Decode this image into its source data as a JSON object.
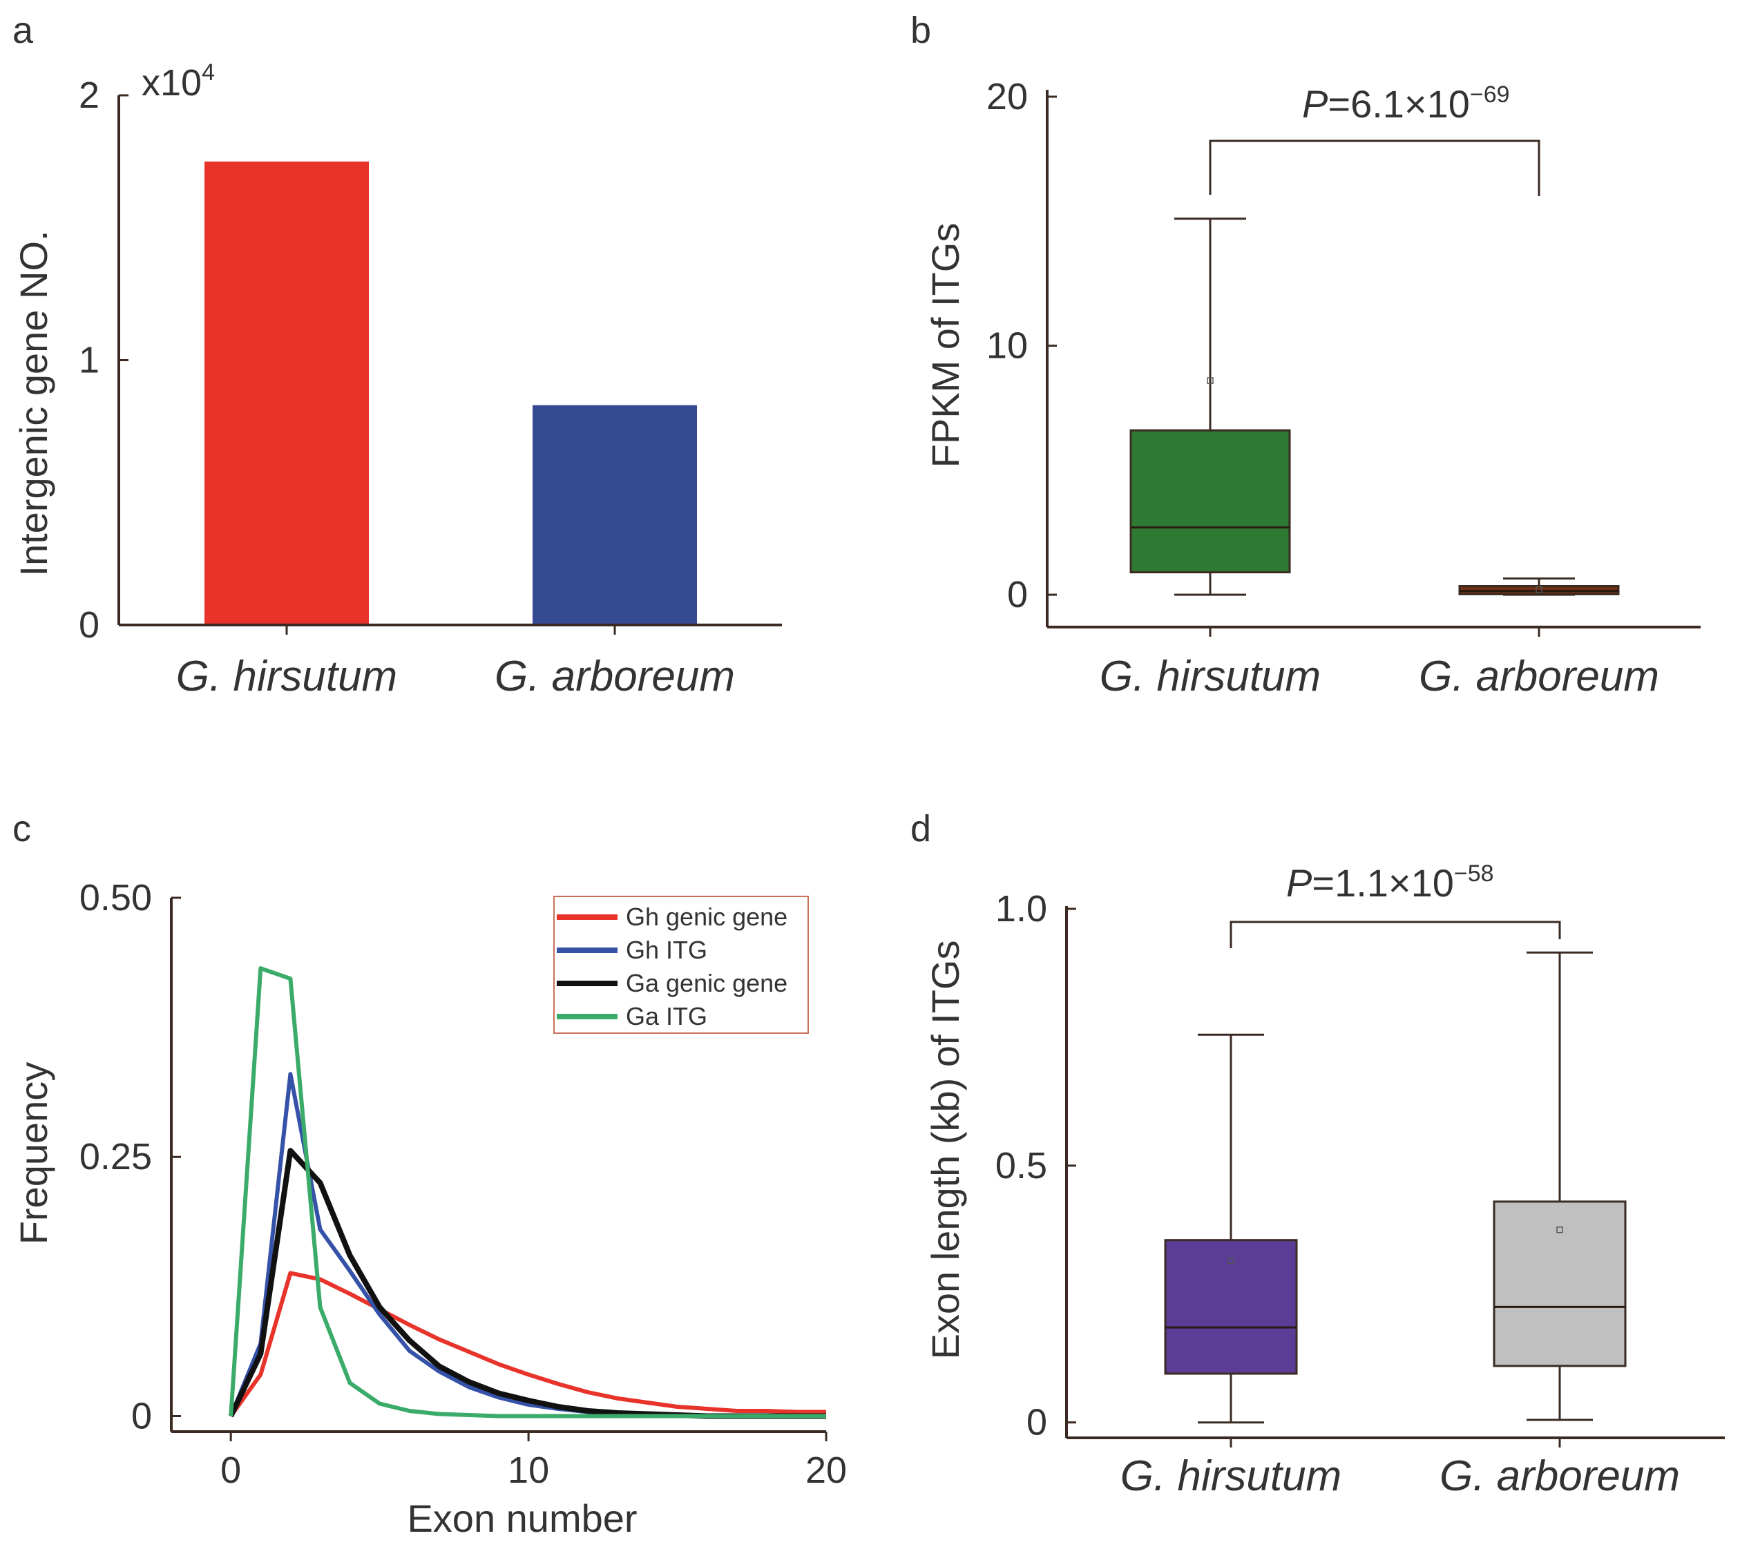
{
  "panels": {
    "a": "a",
    "b": "b",
    "c": "c",
    "d": "d"
  },
  "chart_data": [
    {
      "id": "a",
      "type": "bar",
      "categories": [
        "G. hirsutum",
        "G. arboreum"
      ],
      "values": [
        1.75,
        0.83
      ],
      "colors": [
        "#e8332a",
        "#354a92"
      ],
      "ylabel": "Intergenic gene NO.",
      "multiplier_label": {
        "base": "x10",
        "exp": "4"
      },
      "ylim": [
        0,
        2
      ],
      "yticks": [
        {
          "v": 0,
          "label": "0"
        },
        {
          "v": 1,
          "label": "1"
        },
        {
          "v": 2,
          "label": "2"
        }
      ]
    },
    {
      "id": "b",
      "type": "box",
      "categories": [
        "G. hirsutum",
        "G. arboreum"
      ],
      "boxes": [
        {
          "min": 0,
          "q1": 0.9,
          "median": 2.7,
          "q3": 6.6,
          "max": 15.1,
          "mean": 8.6,
          "color": "#2e7a32"
        },
        {
          "min": 0.0,
          "q1": 0.02,
          "median": 0.15,
          "q3": 0.35,
          "max": 0.65,
          "mean": 0.2,
          "color": "#6f2f16"
        }
      ],
      "ylabel": "FPKM of ITGs",
      "ylim": [
        -1.3,
        20
      ],
      "yticks": [
        {
          "v": 0,
          "label": "0"
        },
        {
          "v": 10,
          "label": "10"
        },
        {
          "v": 20,
          "label": "20"
        }
      ],
      "significance": {
        "p_label": "P",
        "value_text": "=6.1×10",
        "exponent": "−69"
      }
    },
    {
      "id": "c",
      "type": "line",
      "xlabel": "Exon number",
      "ylabel": "Frequency",
      "xlim": [
        -2,
        20
      ],
      "ylim": [
        -0.015,
        0.5
      ],
      "xticks": [
        {
          "v": 0,
          "label": "0"
        },
        {
          "v": 10,
          "label": "10"
        },
        {
          "v": 20,
          "label": "20"
        }
      ],
      "yticks": [
        {
          "v": 0,
          "label": "0"
        },
        {
          "v": 0.25,
          "label": "0.25"
        },
        {
          "v": 0.5,
          "label": "0.50"
        }
      ],
      "series": [
        {
          "name": "Gh genic gene",
          "color": "#e8332a",
          "x": [
            0,
            1,
            2,
            3,
            4,
            5,
            6,
            7,
            8,
            9,
            10,
            11,
            12,
            13,
            14,
            15,
            16,
            17,
            18,
            19,
            20
          ],
          "y": [
            0.0,
            0.04,
            0.138,
            0.132,
            0.118,
            0.103,
            0.088,
            0.074,
            0.062,
            0.05,
            0.04,
            0.031,
            0.023,
            0.017,
            0.013,
            0.009,
            0.007,
            0.005,
            0.005,
            0.004,
            0.004
          ]
        },
        {
          "name": "Gh ITG",
          "color": "#3552a8",
          "x": [
            0,
            1,
            2,
            3,
            4,
            5,
            6,
            7,
            8,
            9,
            10,
            11,
            12,
            13,
            14,
            15,
            16,
            17,
            18,
            19,
            20
          ],
          "y": [
            0.0,
            0.07,
            0.33,
            0.18,
            0.14,
            0.098,
            0.063,
            0.043,
            0.028,
            0.018,
            0.011,
            0.007,
            0.004,
            0.002,
            0.001,
            0.0,
            0.0,
            0.0,
            0.0,
            0.0,
            0.0
          ]
        },
        {
          "name": "Ga genic gene",
          "color": "#111111",
          "x": [
            0,
            1,
            2,
            3,
            4,
            5,
            6,
            7,
            8,
            9,
            10,
            11,
            12,
            13,
            14,
            15,
            16,
            17,
            18,
            19,
            20
          ],
          "y": [
            0.0,
            0.06,
            0.256,
            0.225,
            0.155,
            0.105,
            0.073,
            0.048,
            0.033,
            0.022,
            0.015,
            0.009,
            0.005,
            0.003,
            0.002,
            0.001,
            0.0,
            0.0,
            0.0,
            0.0,
            0.0
          ]
        },
        {
          "name": "Ga ITG",
          "color": "#3bab6a",
          "x": [
            0,
            1,
            2,
            3,
            4,
            5,
            6,
            7,
            8,
            9,
            10,
            11,
            12,
            13,
            14,
            15,
            16,
            17,
            18,
            19,
            20
          ],
          "y": [
            0.0,
            0.432,
            0.422,
            0.105,
            0.032,
            0.012,
            0.005,
            0.002,
            0.001,
            0.0,
            0.0,
            0.0,
            0.0,
            0.0,
            0.0,
            0.0,
            0.0,
            0.0,
            0.0,
            0.0,
            0.0
          ]
        }
      ],
      "legend_position": "top-right"
    },
    {
      "id": "d",
      "type": "box",
      "categories": [
        "G. hirsutum",
        "G. arboreum"
      ],
      "boxes": [
        {
          "min": 0.0,
          "q1": 0.095,
          "median": 0.185,
          "q3": 0.355,
          "max": 0.755,
          "mean": 0.315,
          "color": "#5b3d97"
        },
        {
          "min": 0.005,
          "q1": 0.11,
          "median": 0.225,
          "q3": 0.43,
          "max": 0.915,
          "mean": 0.375,
          "color": "#c0c0c0"
        }
      ],
      "ylabel": "Exon length (kb) of ITGs",
      "ylim": [
        -0.03,
        1.0
      ],
      "yticks": [
        {
          "v": 0,
          "label": "0"
        },
        {
          "v": 0.5,
          "label": "0.5"
        },
        {
          "v": 1.0,
          "label": "1.0"
        }
      ],
      "significance": {
        "p_label": "P",
        "value_text": "=1.1×10",
        "exponent": "−58"
      }
    }
  ]
}
